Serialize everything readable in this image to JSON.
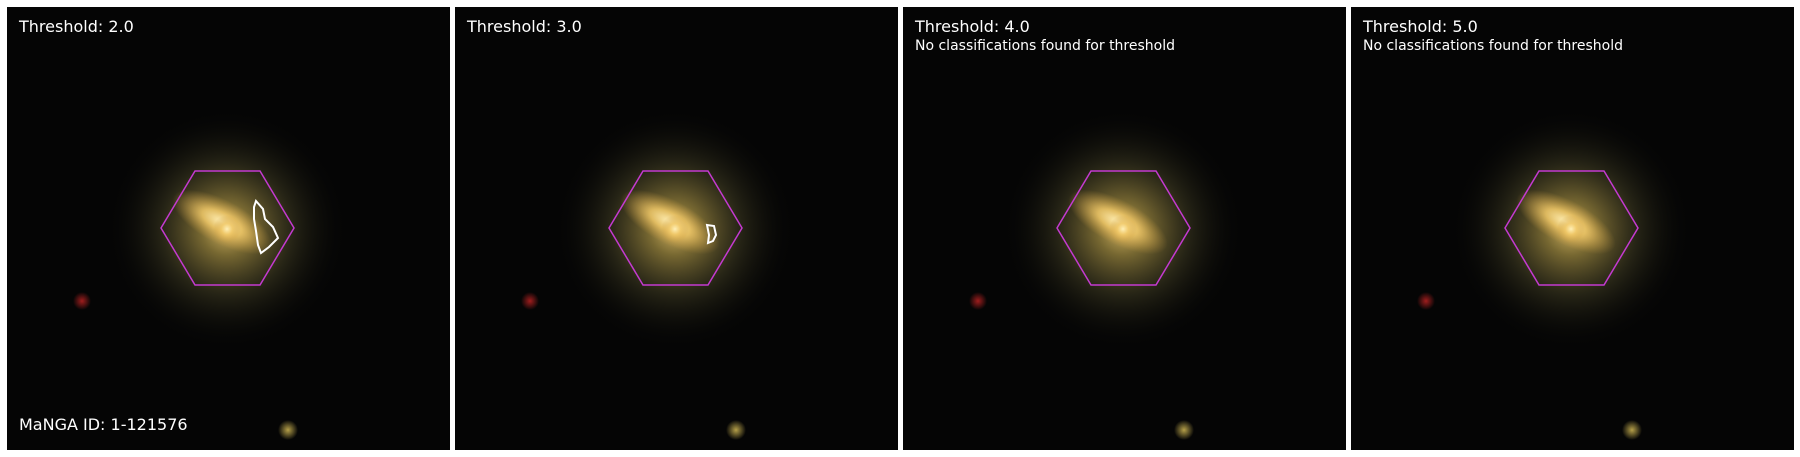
{
  "figure": {
    "manga_id_label": "MaNGA ID: 1-121576",
    "colors": {
      "background": "#050505",
      "galaxy_core": "#f6d27a",
      "galaxy_halo": "#8a7a3a",
      "hexagon": "#c43ad0",
      "contour": "#ffffff",
      "star_red": "#a01e1e",
      "star_yellow": "#b8a040"
    },
    "panels": [
      {
        "threshold_label": "Threshold: 2.0",
        "note": "",
        "has_contour": true
      },
      {
        "threshold_label": "Threshold: 3.0",
        "note": "",
        "has_contour": true
      },
      {
        "threshold_label": "Threshold: 4.0",
        "note": "No classifications found for threshold",
        "has_contour": false
      },
      {
        "threshold_label": "Threshold: 5.0",
        "note": "No classifications found for threshold",
        "has_contour": false
      }
    ]
  }
}
